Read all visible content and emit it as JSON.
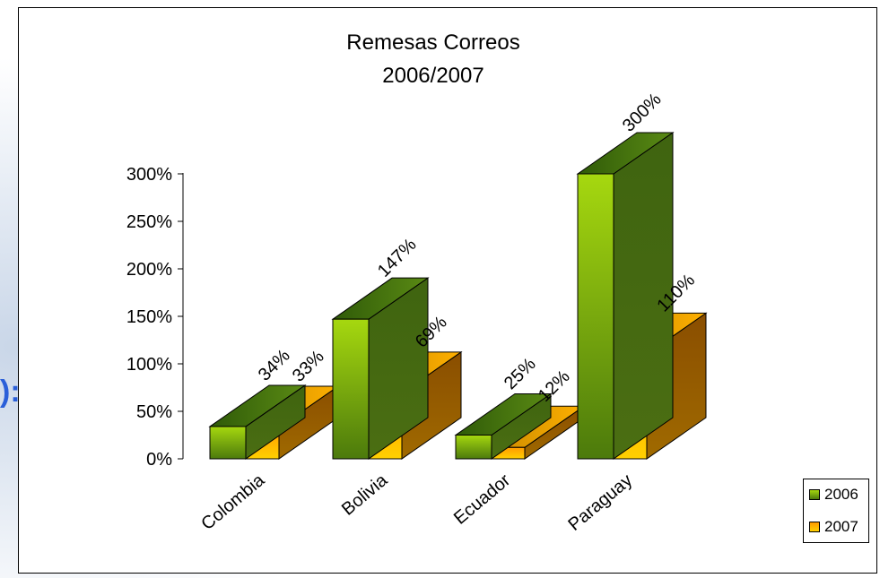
{
  "chart_data": {
    "type": "bar",
    "title": "Remesas Correos",
    "subtitle": "2006/2007",
    "categories": [
      "Colombia",
      "Bolivia",
      "Ecuador",
      "Paraguay"
    ],
    "series": [
      {
        "name": "2006",
        "values": [
          34,
          147,
          25,
          300
        ],
        "labels": [
          "34%",
          "147%",
          "25%",
          "300%"
        ]
      },
      {
        "name": "2007",
        "values": [
          33,
          69,
          12,
          110
        ],
        "labels": [
          "33%",
          "69%",
          "12%",
          "110%"
        ]
      }
    ],
    "ylim": [
      0,
      300
    ],
    "yticks": [
      "0%",
      "50%",
      "100%",
      "150%",
      "200%",
      "250%",
      "300%"
    ],
    "legend_position": "bottom-right",
    "colors": {
      "2006": "#6e9e12",
      "2007": "#ffb000"
    }
  },
  "background_fragment": "):"
}
